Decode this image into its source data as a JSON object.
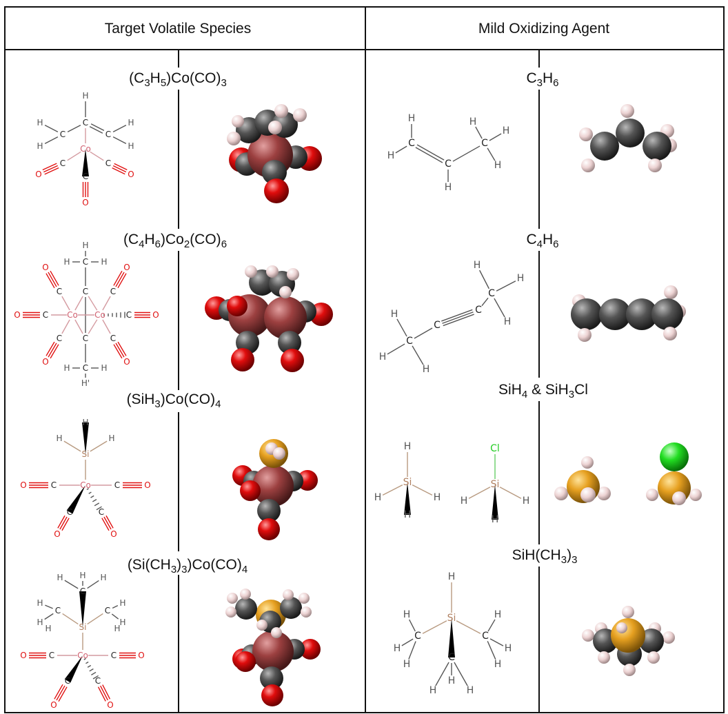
{
  "headers": {
    "left": "Target Volatile Species",
    "right": "Mild Oxidizing Agent"
  },
  "left_rows": [
    {
      "formula": "(C3H5)Co(CO)3"
    },
    {
      "formula": "(C4H6)Co2(CO)6"
    },
    {
      "formula": "(SiH3)Co(CO)4"
    },
    {
      "formula": "(Si(CH3)3)Co(CO)4"
    }
  ],
  "right_rows": [
    {
      "formula": "C3H6"
    },
    {
      "formula": "C4H6"
    },
    {
      "formula": "SiH4 & SiH3Cl"
    },
    {
      "formula": "SiH(CH3)3"
    }
  ],
  "atoms": {
    "H": "H",
    "C": "C",
    "O": "O",
    "Co": "Co",
    "Si": "Si",
    "Cl": "Cl",
    "Hprime": "H'"
  },
  "colors": {
    "carbon": "#4a4a4a",
    "hydrogen": "#f0dede",
    "oxygen": "#e00d0d",
    "cobalt": "#9c4040",
    "silicon": "#e6a020",
    "chlorine": "#22dd22",
    "label_oxygen": "#e01010",
    "label_cobalt": "#d06070",
    "label_silicon": "#b08060",
    "label_chlorine": "#22cc22"
  }
}
